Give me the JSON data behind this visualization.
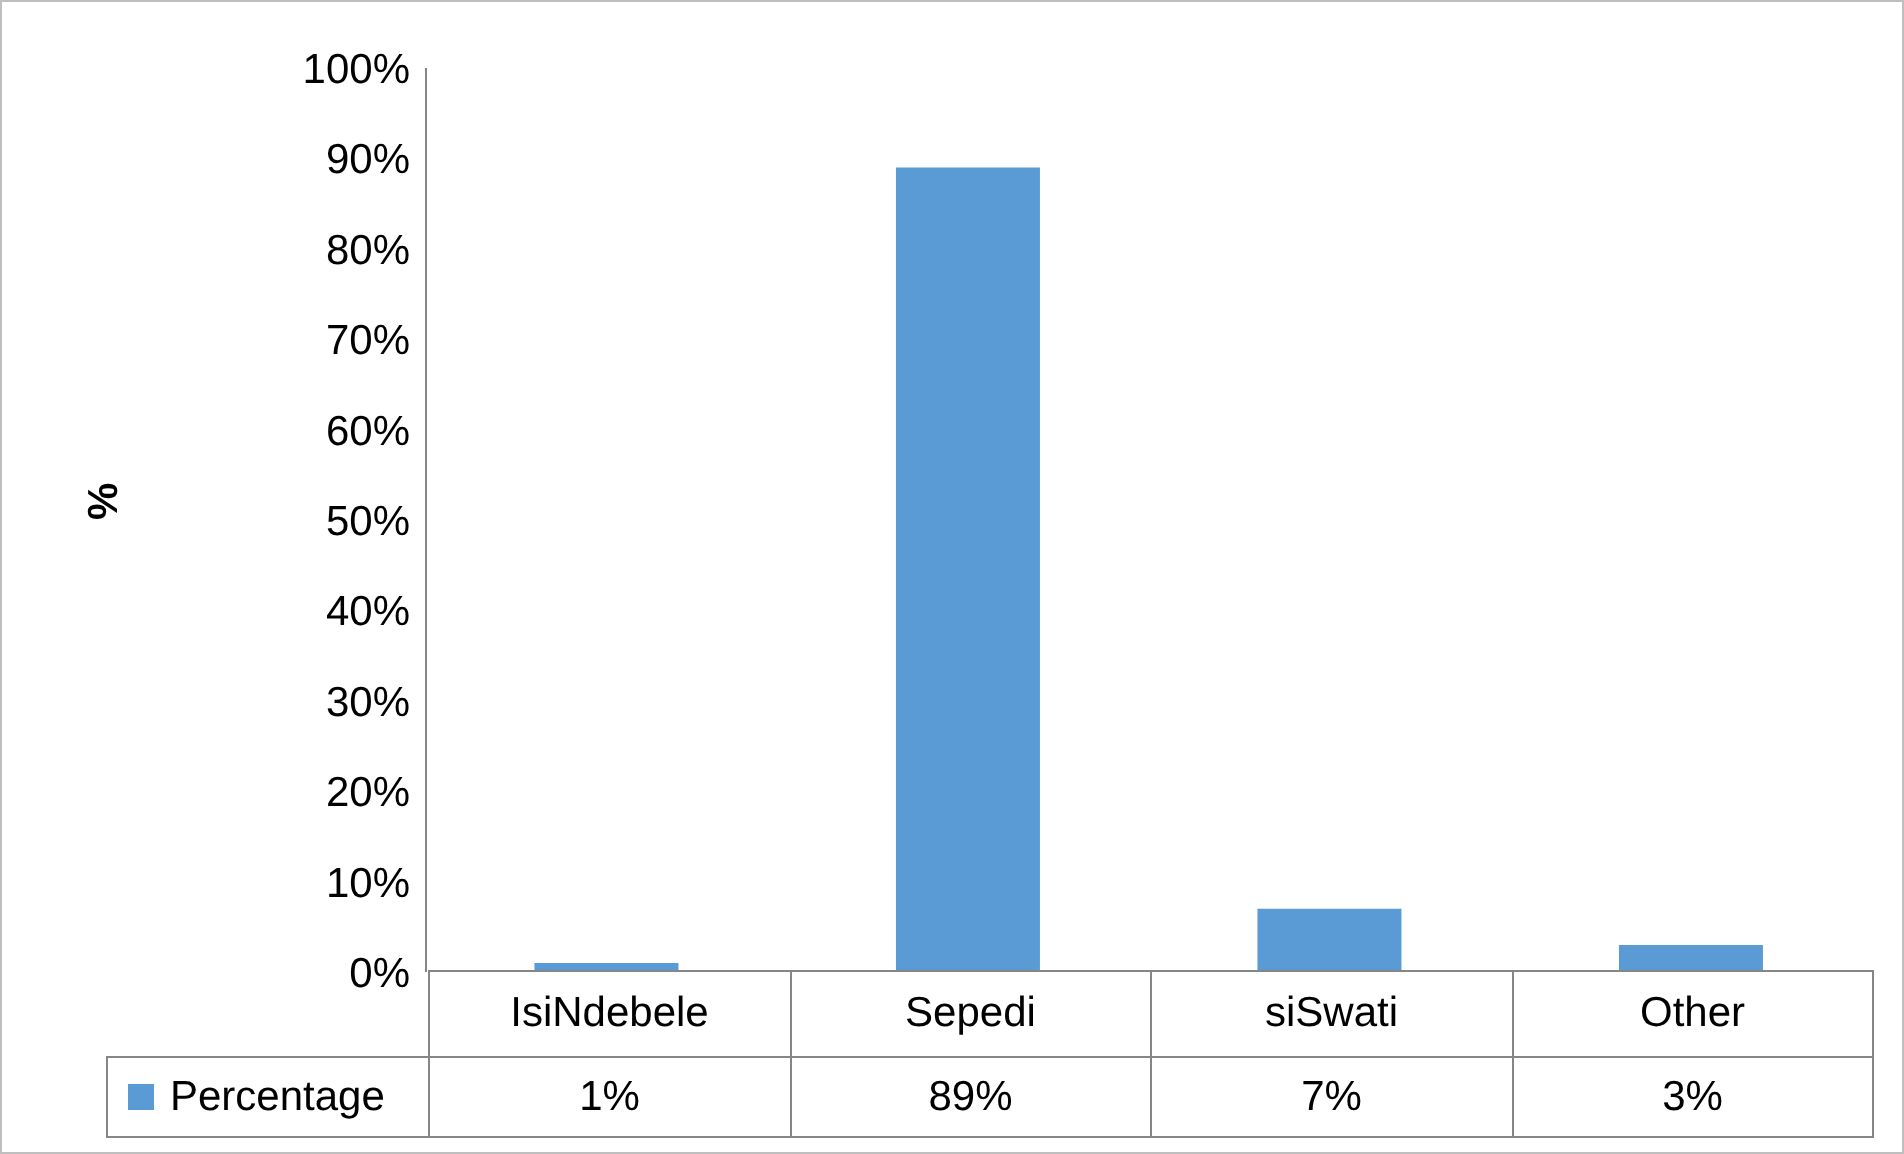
{
  "chart_data": {
    "type": "bar",
    "ylabel": "%",
    "categories": [
      "IsiNdebele",
      "Sepedi",
      "siSwati",
      "Other"
    ],
    "series": [
      {
        "name": "Percentage",
        "color": "#5b9bd5",
        "values": [
          1,
          89,
          7,
          3
        ],
        "value_labels": [
          "1%",
          "89%",
          "7%",
          "3%"
        ]
      }
    ],
    "ylim": [
      0,
      100
    ],
    "yticks": [
      {
        "value": 0,
        "label": "0%"
      },
      {
        "value": 10,
        "label": "10%"
      },
      {
        "value": 20,
        "label": "20%"
      },
      {
        "value": 30,
        "label": "30%"
      },
      {
        "value": 40,
        "label": "40%"
      },
      {
        "value": 50,
        "label": "50%"
      },
      {
        "value": 60,
        "label": "60%"
      },
      {
        "value": 70,
        "label": "70%"
      },
      {
        "value": 80,
        "label": "80%"
      },
      {
        "value": 90,
        "label": "90%"
      },
      {
        "value": 100,
        "label": "100%"
      }
    ],
    "grid": false,
    "legend": "bottom"
  }
}
